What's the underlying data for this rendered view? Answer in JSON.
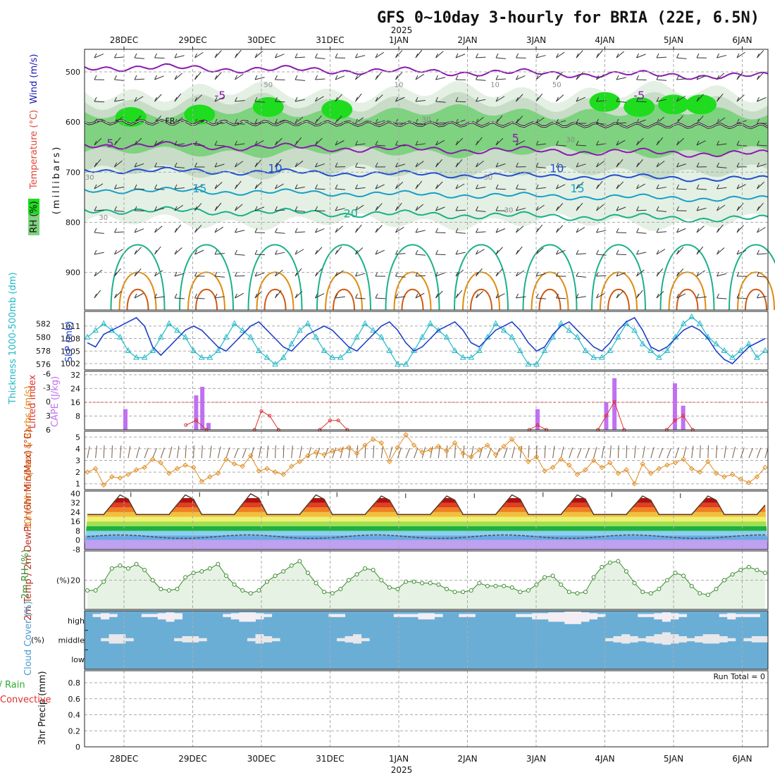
{
  "title": "GFS 0~10day 3-hourly for BRIA (22E, 6.5N)",
  "year": "2025",
  "dates": [
    "28DEC",
    "29DEC",
    "30DEC",
    "31DEC",
    "1JAN",
    "2JAN",
    "3JAN",
    "4JAN",
    "5JAN",
    "6JAN"
  ],
  "colors": {
    "rh_dark": "#1fdc1f",
    "rh_mid": "#7fd27f",
    "rh_light": "#c8dcc8",
    "rh_pale": "#e4f0e4",
    "purple": "#8a1ab0",
    "blue": "#1e4fd0",
    "cyan": "#17a0c8",
    "teal": "#1cb08a",
    "orange": "#e08c10",
    "dorange": "#d05a10",
    "cloud": "#6aaed6",
    "cape": "#c070f0",
    "li": "#e03030",
    "wind10": "#e08c20",
    "rh2m": "#3a8a2e",
    "slp": "#1f3fc8",
    "thick": "#20b8c8"
  },
  "upper_panel": {
    "ylabel_wind": "Wind (m/s)",
    "ylabel_temp": "Temperature (°C)",
    "ylabel_rh": "RH (%)",
    "ylabel_p": "(millibars)",
    "p_ticks": [
      "500",
      "600",
      "700",
      "800",
      "900"
    ],
    "isotherm_labels": [
      "-5",
      "-5",
      "5",
      "5",
      "10",
      "10",
      "15",
      "15",
      "20"
    ],
    "freezing_label": "FR",
    "rh_labels": [
      "30",
      "50",
      "30",
      "30",
      "10",
      "10",
      "30",
      "50",
      "30",
      "30"
    ]
  },
  "chart_data": [
    {
      "type": "line",
      "title": "Thickness 1000-500mb (dm) / SLP (mb)",
      "ylabel_left": "Thickness 1000-500mb (dm)",
      "ylabel_right": "SLP (mb)",
      "thickness_ticks": [
        "582",
        "580",
        "578",
        "576"
      ],
      "slp_ticks": [
        "1011",
        "1008",
        "1005",
        "1002"
      ],
      "series": [
        {
          "name": "SLP (mb)",
          "ylim": [
            1001,
            1014
          ],
          "values": [
            1007,
            1006,
            1009,
            1010,
            1011,
            1012,
            1013,
            1011,
            1006,
            1004,
            1006,
            1008,
            1010,
            1011,
            1010,
            1008,
            1006,
            1005,
            1007,
            1009,
            1011,
            1012,
            1010,
            1008,
            1006,
            1005,
            1007,
            1009,
            1010,
            1011,
            1010,
            1008,
            1006,
            1005,
            1007,
            1009,
            1011,
            1012,
            1010,
            1007,
            1005,
            1006,
            1008,
            1010,
            1011,
            1012,
            1010,
            1007,
            1006,
            1008,
            1010,
            1011,
            1012,
            1010,
            1007,
            1005,
            1006,
            1009,
            1011,
            1012,
            1010,
            1008,
            1006,
            1005,
            1007,
            1010,
            1012,
            1013,
            1010,
            1006,
            1005,
            1006,
            1008,
            1010,
            1011,
            1010,
            1008,
            1005,
            1003,
            1002,
            1004,
            1006,
            1007,
            1008
          ]
        },
        {
          "name": "Thickness (dm)",
          "ylim": [
            575.5,
            583.5
          ],
          "values": [
            580,
            581,
            582,
            581,
            580,
            578,
            577,
            577,
            578,
            580,
            582,
            581,
            580,
            578,
            577,
            577,
            578,
            580,
            582,
            581,
            580,
            578,
            577,
            576,
            577,
            579,
            581,
            582,
            580,
            578,
            577,
            577,
            578,
            580,
            582,
            581,
            580,
            578,
            576,
            576,
            578,
            580,
            582,
            581,
            580,
            578,
            577,
            577,
            578,
            580,
            582,
            581,
            580,
            578,
            576,
            576,
            578,
            580,
            582,
            581,
            580,
            578,
            577,
            577,
            578,
            580,
            582,
            581,
            579,
            578,
            577,
            578,
            580,
            582,
            583,
            582,
            580,
            579,
            578,
            577,
            578,
            579,
            577,
            578
          ]
        }
      ]
    },
    {
      "type": "bar",
      "title": "Lifted Index / CAPE (J/kg)",
      "ylabel_left": "Lifted Index",
      "ylabel_right": "CAPE (J/kg)",
      "li_ticks": [
        "-6",
        "-3",
        "0",
        "3",
        "6"
      ],
      "cape_ticks": [
        "32",
        "24",
        "16",
        "8"
      ],
      "cape_threshold": 16,
      "cape": [
        {
          "day": 0.52,
          "value": 12
        },
        {
          "day": 1.55,
          "value": 20
        },
        {
          "day": 1.64,
          "value": 25
        },
        {
          "day": 1.73,
          "value": 4
        },
        {
          "day": 6.52,
          "value": 12
        },
        {
          "day": 7.52,
          "value": 16
        },
        {
          "day": 7.64,
          "value": 30
        },
        {
          "day": 8.52,
          "value": 27
        },
        {
          "day": 8.64,
          "value": 14
        }
      ],
      "lifted_index": [
        {
          "day": 1.4,
          "value": 5
        },
        {
          "day": 1.55,
          "value": 4
        },
        {
          "day": 1.7,
          "value": 6
        },
        {
          "day": 2.4,
          "value": 6
        },
        {
          "day": 2.5,
          "value": 2
        },
        {
          "day": 2.62,
          "value": 3
        },
        {
          "day": 2.75,
          "value": 6
        },
        {
          "day": 3.35,
          "value": 6
        },
        {
          "day": 3.5,
          "value": 4
        },
        {
          "day": 3.62,
          "value": 4
        },
        {
          "day": 3.75,
          "value": 6
        },
        {
          "day": 6.4,
          "value": 6
        },
        {
          "day": 6.52,
          "value": 5
        },
        {
          "day": 6.65,
          "value": 6
        },
        {
          "day": 7.4,
          "value": 6
        },
        {
          "day": 7.52,
          "value": 3
        },
        {
          "day": 7.64,
          "value": 0
        },
        {
          "day": 7.78,
          "value": 6
        },
        {
          "day": 8.4,
          "value": 6
        },
        {
          "day": 8.52,
          "value": 4
        },
        {
          "day": 8.64,
          "value": 3
        },
        {
          "day": 8.78,
          "value": 6
        }
      ]
    },
    {
      "type": "line",
      "title": "10m Wind Speed & Barbs (m/s)",
      "ylabel": "10m Wind Speed & Barbs (m/s)",
      "y_ticks": [
        "5",
        "4",
        "3",
        "2",
        "1"
      ],
      "ylim": [
        0.5,
        5.5
      ],
      "values": [
        2.0,
        2.3,
        0.9,
        1.6,
        1.5,
        1.8,
        2.2,
        2.4,
        3.1,
        2.8,
        1.9,
        2.3,
        2.6,
        2.4,
        1.2,
        1.6,
        1.9,
        3.1,
        2.7,
        2.5,
        3.4,
        2.1,
        2.3,
        2.0,
        1.8,
        2.5,
        2.9,
        3.4,
        3.7,
        3.5,
        3.8,
        3.9,
        4.1,
        3.6,
        4.3,
        4.8,
        4.5,
        2.9,
        4.1,
        5.2,
        4.3,
        3.7,
        3.9,
        4.2,
        3.8,
        4.5,
        3.6,
        3.3,
        3.9,
        4.3,
        3.5,
        4.2,
        4.8,
        4.0,
        2.9,
        3.3,
        2.1,
        2.4,
        3.1,
        2.6,
        1.8,
        2.2,
        3.0,
        2.4,
        2.8,
        1.9,
        2.2,
        1.0,
        2.7,
        1.9,
        2.3,
        2.6,
        2.8,
        3.1,
        2.3,
        2.0,
        2.9,
        1.9,
        1.6,
        1.8,
        1.4,
        1.1,
        1.6,
        2.4
      ]
    },
    {
      "type": "area",
      "title": "2m Temp / 2m DewPt (°C)",
      "ylabel": "2m Temp / 2m DewPt / (6hr Min/Max) (°C)",
      "y_ticks": [
        "40",
        "32",
        "24",
        "16",
        "8",
        "0",
        "-8"
      ],
      "ylim": [
        -8,
        42
      ],
      "temp_min": 22,
      "temp_max": [
        39,
        39,
        40,
        39,
        38,
        38,
        39,
        39,
        38
      ],
      "dewpoint_level": 3
    },
    {
      "type": "area",
      "title": "2m RH (%)",
      "ylabel": "2m RH (%)",
      "y_ticks": [
        "20"
      ],
      "ylim": [
        0,
        40
      ],
      "values": [
        13,
        13,
        19,
        28,
        30,
        28,
        31,
        27,
        20,
        14,
        13,
        14,
        22,
        25,
        26,
        28,
        31,
        23,
        17,
        13,
        11,
        13,
        19,
        23,
        26,
        30,
        33,
        25,
        18,
        12,
        11,
        14,
        20,
        24,
        28,
        27,
        20,
        15,
        14,
        19,
        19,
        18,
        18,
        17,
        14,
        12,
        12,
        13,
        18,
        16,
        16,
        16,
        15,
        12,
        13,
        17,
        22,
        23,
        17,
        12,
        11,
        12,
        22,
        29,
        32,
        33,
        26,
        18,
        12,
        11,
        14,
        20,
        25,
        23,
        16,
        11,
        10,
        14,
        20,
        24,
        27,
        29,
        27,
        25
      ]
    },
    {
      "type": "heatmap",
      "title": "Cloud Cover (%)",
      "ylabel": "Cloud Cover (%)",
      "levels": [
        "high",
        "middle",
        "low"
      ],
      "high": [
        0,
        20,
        40,
        20,
        0,
        0,
        0,
        20,
        20,
        40,
        60,
        40,
        0,
        0,
        0,
        0,
        0,
        20,
        40,
        60,
        60,
        40,
        20,
        0,
        0,
        0,
        0,
        0,
        0,
        0,
        20,
        20,
        0,
        0,
        0,
        0,
        0,
        0,
        20,
        20,
        20,
        40,
        40,
        20,
        0,
        0,
        20,
        20,
        0,
        0,
        0,
        0,
        0,
        20,
        20,
        40,
        40,
        60,
        60,
        80,
        80,
        60,
        40,
        20,
        0,
        0,
        0,
        0,
        20,
        20,
        40,
        60,
        40,
        20,
        0,
        0,
        0,
        0,
        20,
        40,
        20,
        20,
        20,
        0
      ],
      "middle": [
        0,
        0,
        20,
        60,
        60,
        20,
        0,
        0,
        0,
        0,
        0,
        20,
        40,
        40,
        20,
        0,
        0,
        0,
        0,
        0,
        20,
        60,
        40,
        20,
        0,
        0,
        0,
        0,
        0,
        0,
        0,
        20,
        40,
        60,
        20,
        0,
        0,
        0,
        0,
        0,
        0,
        0,
        0,
        0,
        0,
        0,
        0,
        0,
        0,
        0,
        0,
        0,
        0,
        0,
        0,
        0,
        0,
        0,
        0,
        0,
        0,
        0,
        0,
        0,
        20,
        40,
        60,
        40,
        20,
        40,
        60,
        80,
        60,
        40,
        20,
        40,
        60,
        60,
        40,
        20,
        0,
        20,
        40,
        40
      ]
    },
    {
      "type": "line",
      "title": "3hr Precip (mm)",
      "ylabel": "3hr Precip (mm)",
      "legend_total": "Total / Rain",
      "legend_conv": "Convective",
      "run_total": "Run Total = 0",
      "y_ticks": [
        "0.8",
        "0.6",
        "0.4",
        "0.2",
        "0"
      ],
      "ylim": [
        0,
        0.95
      ],
      "values": [
        0
      ]
    }
  ]
}
